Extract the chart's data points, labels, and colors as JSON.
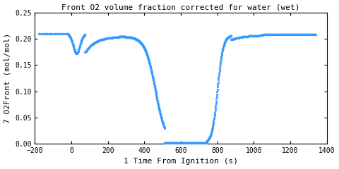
{
  "title": "Front O2 volume fraction corrected for water (wet)",
  "xlabel": "1 Time From Ignition (s)",
  "ylabel": "7 O2Front (mol/mol)",
  "xlim": [
    -200,
    1400
  ],
  "ylim": [
    0,
    0.25
  ],
  "xticks": [
    -200,
    0,
    200,
    400,
    600,
    800,
    1000,
    1200,
    1400
  ],
  "yticks": [
    0.0,
    0.05,
    0.1,
    0.15,
    0.2,
    0.25
  ],
  "line_color": "#3399ff",
  "marker": "*",
  "markersize": 2.5,
  "bg_color": "#ffffff",
  "font_color": "#000000",
  "font_family": "monospace",
  "title_fontsize": 8,
  "label_fontsize": 8,
  "tick_fontsize": 7
}
